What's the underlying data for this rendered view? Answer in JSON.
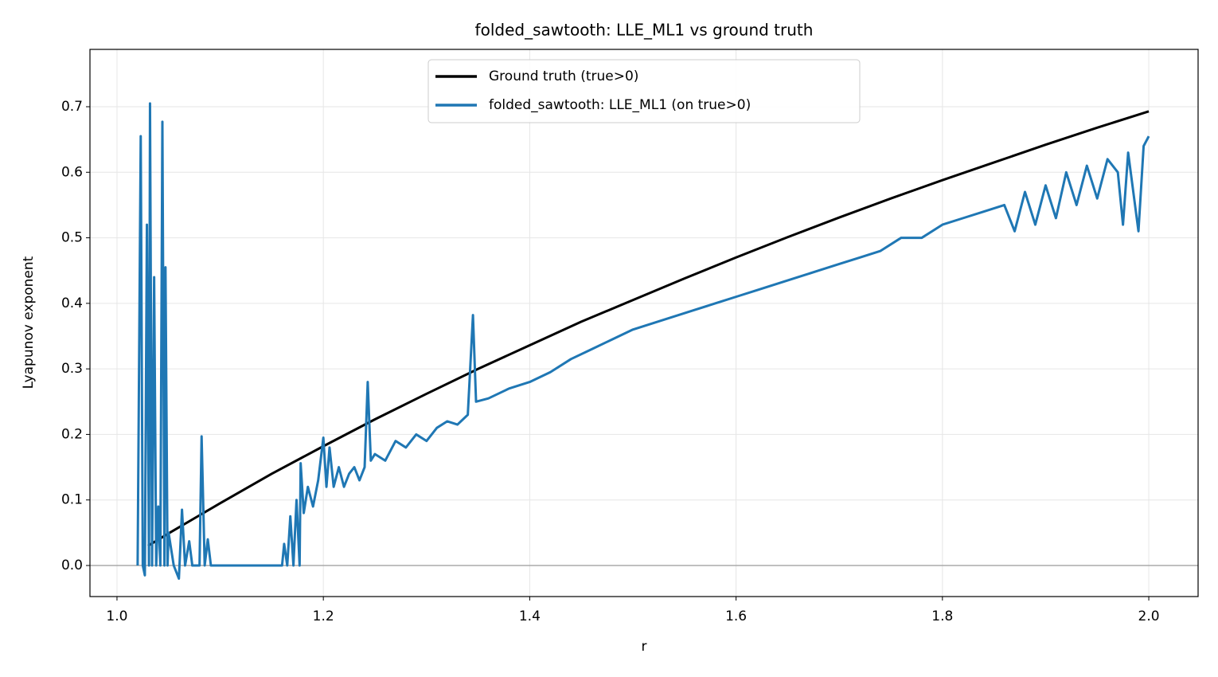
{
  "chart_data": {
    "type": "line",
    "title": "folded_sawtooth: LLE_ML1 vs ground truth",
    "xlabel": "r",
    "ylabel": "Lyapunov exponent",
    "xlim": [
      0.9738,
      2.0478
    ],
    "ylim": [
      -0.0474,
      0.7875
    ],
    "xticks": [
      {
        "value": 1.0,
        "label": "1.0"
      },
      1.2,
      1.4,
      1.6,
      1.8,
      {
        "value": 2.0,
        "label": "2.0"
      }
    ],
    "yticks": [
      {
        "value": 0,
        "label": "0.0"
      },
      0.1,
      0.2,
      0.3,
      0.4,
      0.5,
      0.6,
      0.7
    ],
    "grid": true,
    "legend": "upper center",
    "series": [
      {
        "name": "Ground truth (true>0)",
        "color": "#000000",
        "x": [
          1.03,
          1.05,
          1.1,
          1.15,
          1.2,
          1.25,
          1.3,
          1.35,
          1.4,
          1.45,
          1.5,
          1.55,
          1.6,
          1.65,
          1.7,
          1.75,
          1.8,
          1.85,
          1.9,
          1.95,
          2.0
        ],
        "values": [
          0.03,
          0.049,
          0.095,
          0.14,
          0.182,
          0.223,
          0.262,
          0.3,
          0.336,
          0.372,
          0.405,
          0.438,
          0.47,
          0.501,
          0.531,
          0.56,
          0.588,
          0.615,
          0.642,
          0.668,
          0.693
        ]
      },
      {
        "name": "folded_sawtooth: LLE_ML1 (on true>0)",
        "color": "#1f77b4",
        "x": [
          1.02,
          1.023,
          1.025,
          1.027,
          1.029,
          1.031,
          1.032,
          1.034,
          1.036,
          1.038,
          1.04,
          1.042,
          1.044,
          1.046,
          1.047,
          1.049,
          1.05,
          1.055,
          1.06,
          1.063,
          1.066,
          1.07,
          1.073,
          1.08,
          1.082,
          1.085,
          1.088,
          1.091,
          1.16,
          1.162,
          1.165,
          1.168,
          1.171,
          1.174,
          1.177,
          1.178,
          1.181,
          1.185,
          1.19,
          1.195,
          1.2,
          1.203,
          1.206,
          1.21,
          1.215,
          1.22,
          1.225,
          1.23,
          1.235,
          1.24,
          1.243,
          1.246,
          1.25,
          1.26,
          1.27,
          1.28,
          1.29,
          1.3,
          1.31,
          1.32,
          1.33,
          1.34,
          1.345,
          1.348,
          1.36,
          1.38,
          1.4,
          1.42,
          1.44,
          1.46,
          1.48,
          1.5,
          1.52,
          1.54,
          1.56,
          1.58,
          1.6,
          1.62,
          1.64,
          1.66,
          1.68,
          1.7,
          1.72,
          1.74,
          1.76,
          1.78,
          1.8,
          1.82,
          1.84,
          1.86,
          1.87,
          1.88,
          1.89,
          1.9,
          1.91,
          1.92,
          1.93,
          1.94,
          1.95,
          1.96,
          1.97,
          1.975,
          1.98,
          1.99,
          1.995,
          2.0
        ],
        "values": [
          0,
          0.655,
          0,
          -0.015,
          0.52,
          0,
          0.705,
          0,
          0.44,
          0,
          0.09,
          0,
          0.677,
          0,
          0.455,
          0,
          0.05,
          0,
          -0.02,
          0.085,
          0,
          0.037,
          0,
          0,
          0.197,
          0,
          0.04,
          0,
          0,
          0.033,
          0,
          0.075,
          0,
          0.1,
          0,
          0.156,
          0.08,
          0.12,
          0.09,
          0.13,
          0.195,
          0.12,
          0.18,
          0.12,
          0.15,
          0.12,
          0.14,
          0.15,
          0.13,
          0.15,
          0.28,
          0.16,
          0.17,
          0.16,
          0.19,
          0.18,
          0.2,
          0.19,
          0.21,
          0.22,
          0.215,
          0.23,
          0.382,
          0.25,
          0.255,
          0.27,
          0.28,
          0.295,
          0.315,
          0.33,
          0.345,
          0.36,
          0.37,
          0.38,
          0.39,
          0.4,
          0.41,
          0.42,
          0.43,
          0.44,
          0.45,
          0.46,
          0.47,
          0.48,
          0.5,
          0.5,
          0.52,
          0.53,
          0.54,
          0.55,
          0.51,
          0.57,
          0.52,
          0.58,
          0.53,
          0.6,
          0.55,
          0.61,
          0.56,
          0.62,
          0.6,
          0.52,
          0.63,
          0.51,
          0.64,
          0.655
        ]
      }
    ]
  }
}
